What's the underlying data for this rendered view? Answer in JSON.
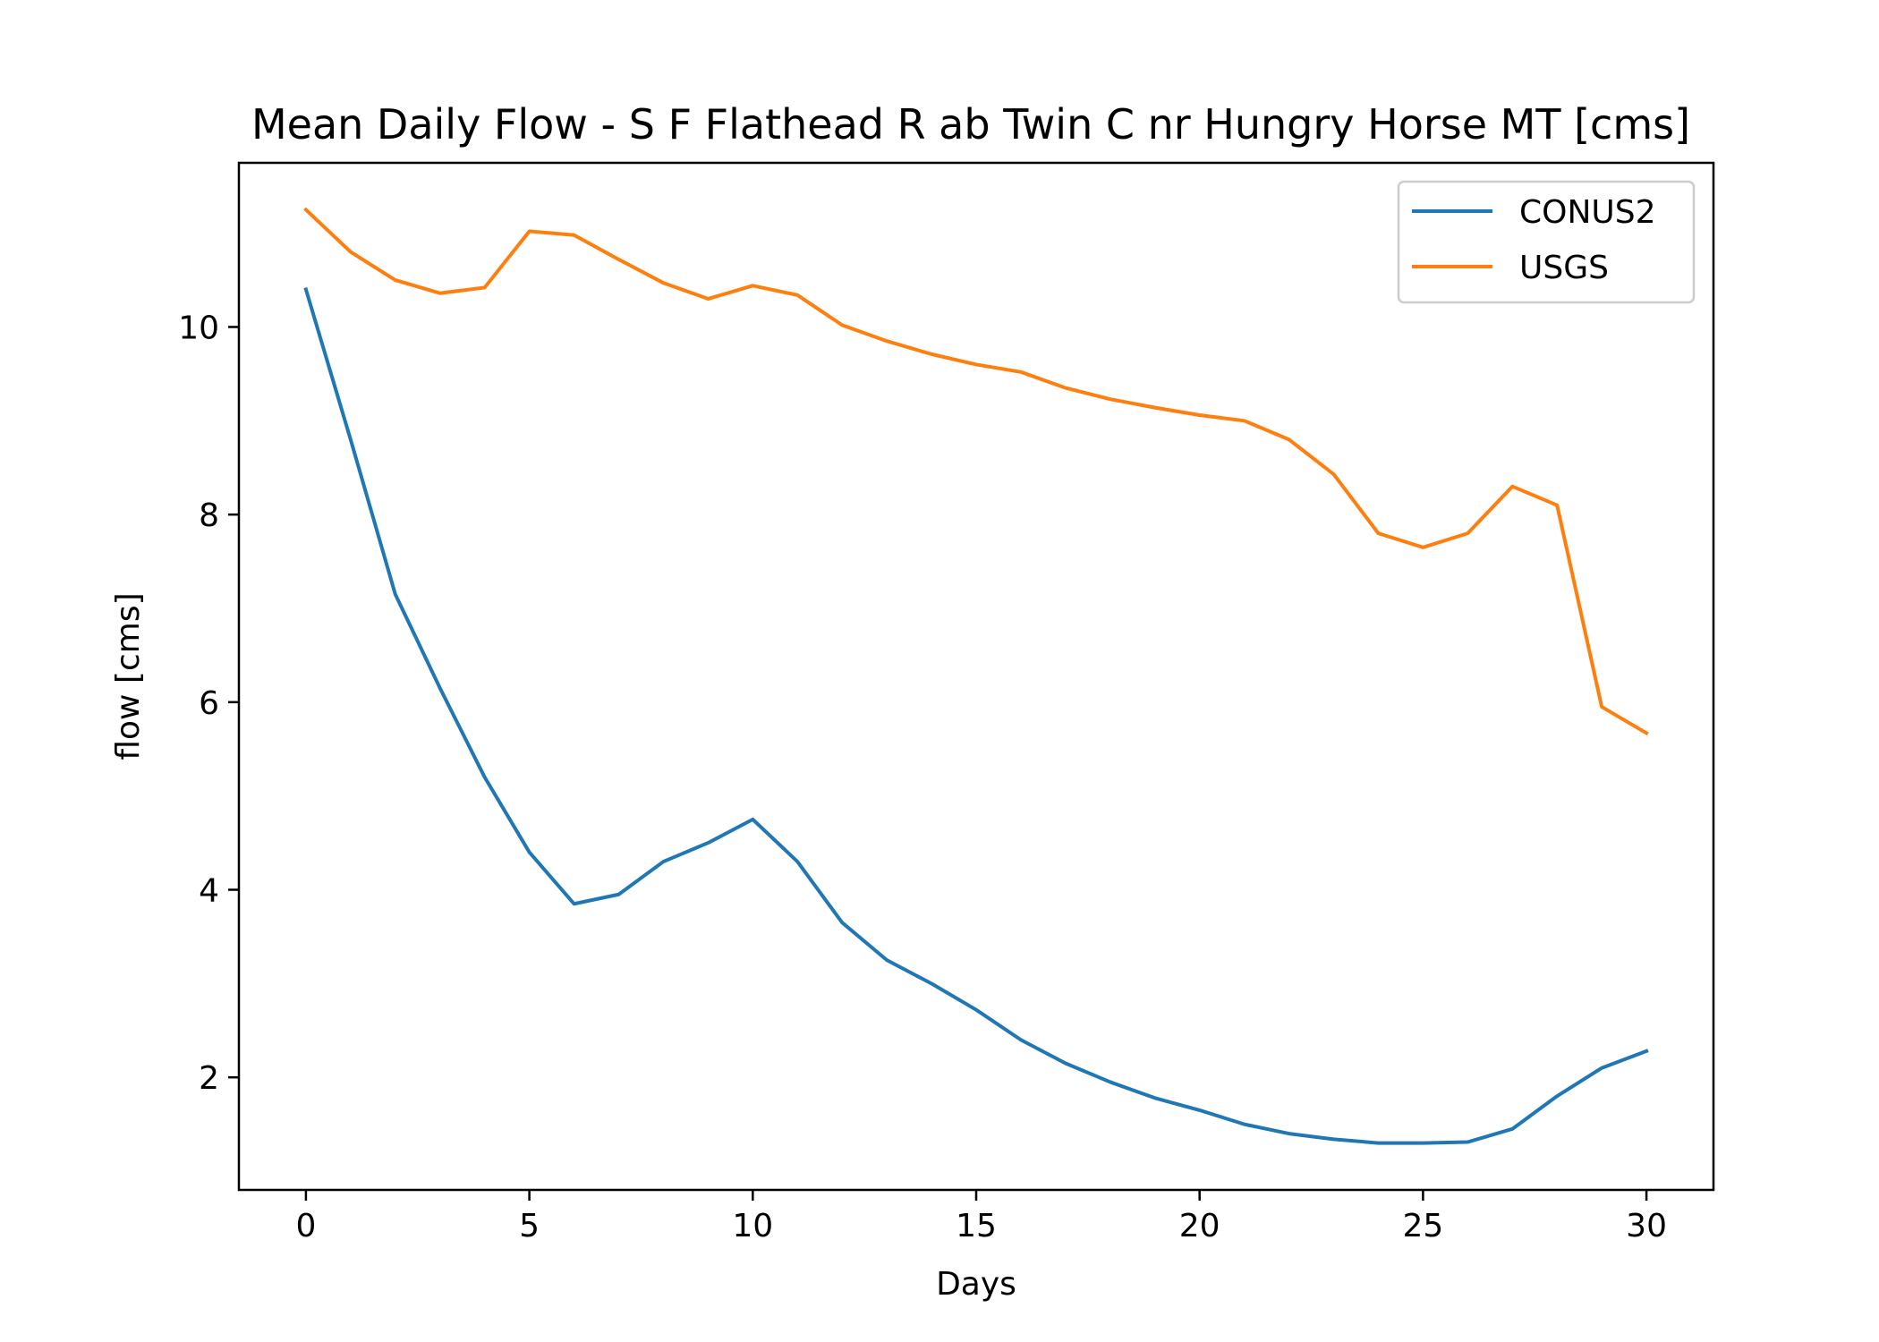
{
  "chart_data": {
    "type": "line",
    "title": "Mean Daily Flow - S F Flathead R ab Twin C nr Hungry Horse MT [cms]",
    "xlabel": "Days",
    "ylabel": "flow [cms]",
    "xlim": [
      -1.5,
      31.5
    ],
    "ylim": [
      0.8,
      11.75
    ],
    "xticks": [
      0,
      5,
      10,
      15,
      20,
      25,
      30
    ],
    "yticks": [
      2,
      4,
      6,
      8,
      10
    ],
    "grid": false,
    "legend_position": "top-right",
    "x": [
      0,
      1,
      2,
      3,
      4,
      5,
      6,
      7,
      8,
      9,
      10,
      11,
      12,
      13,
      14,
      15,
      16,
      17,
      18,
      19,
      20,
      21,
      22,
      23,
      24,
      25,
      26,
      27,
      28,
      29,
      30
    ],
    "series": [
      {
        "name": "CONUS2",
        "color": "#1f77b4",
        "values": [
          10.4,
          8.8,
          7.15,
          6.15,
          5.2,
          4.4,
          3.85,
          3.95,
          4.3,
          4.5,
          4.75,
          4.3,
          3.65,
          3.25,
          3.0,
          2.72,
          2.4,
          2.15,
          1.95,
          1.78,
          1.65,
          1.5,
          1.4,
          1.34,
          1.3,
          1.3,
          1.31,
          1.45,
          1.8,
          2.1,
          2.28
        ]
      },
      {
        "name": "USGS",
        "color": "#ff7f0e",
        "values": [
          11.25,
          10.8,
          10.5,
          10.36,
          10.42,
          11.02,
          10.98,
          10.72,
          10.47,
          10.3,
          10.44,
          10.34,
          10.02,
          9.85,
          9.71,
          9.6,
          9.52,
          9.35,
          9.23,
          9.14,
          9.06,
          9.0,
          8.8,
          8.43,
          7.8,
          7.65,
          7.8,
          8.3,
          8.1,
          5.95,
          5.67
        ]
      }
    ]
  }
}
